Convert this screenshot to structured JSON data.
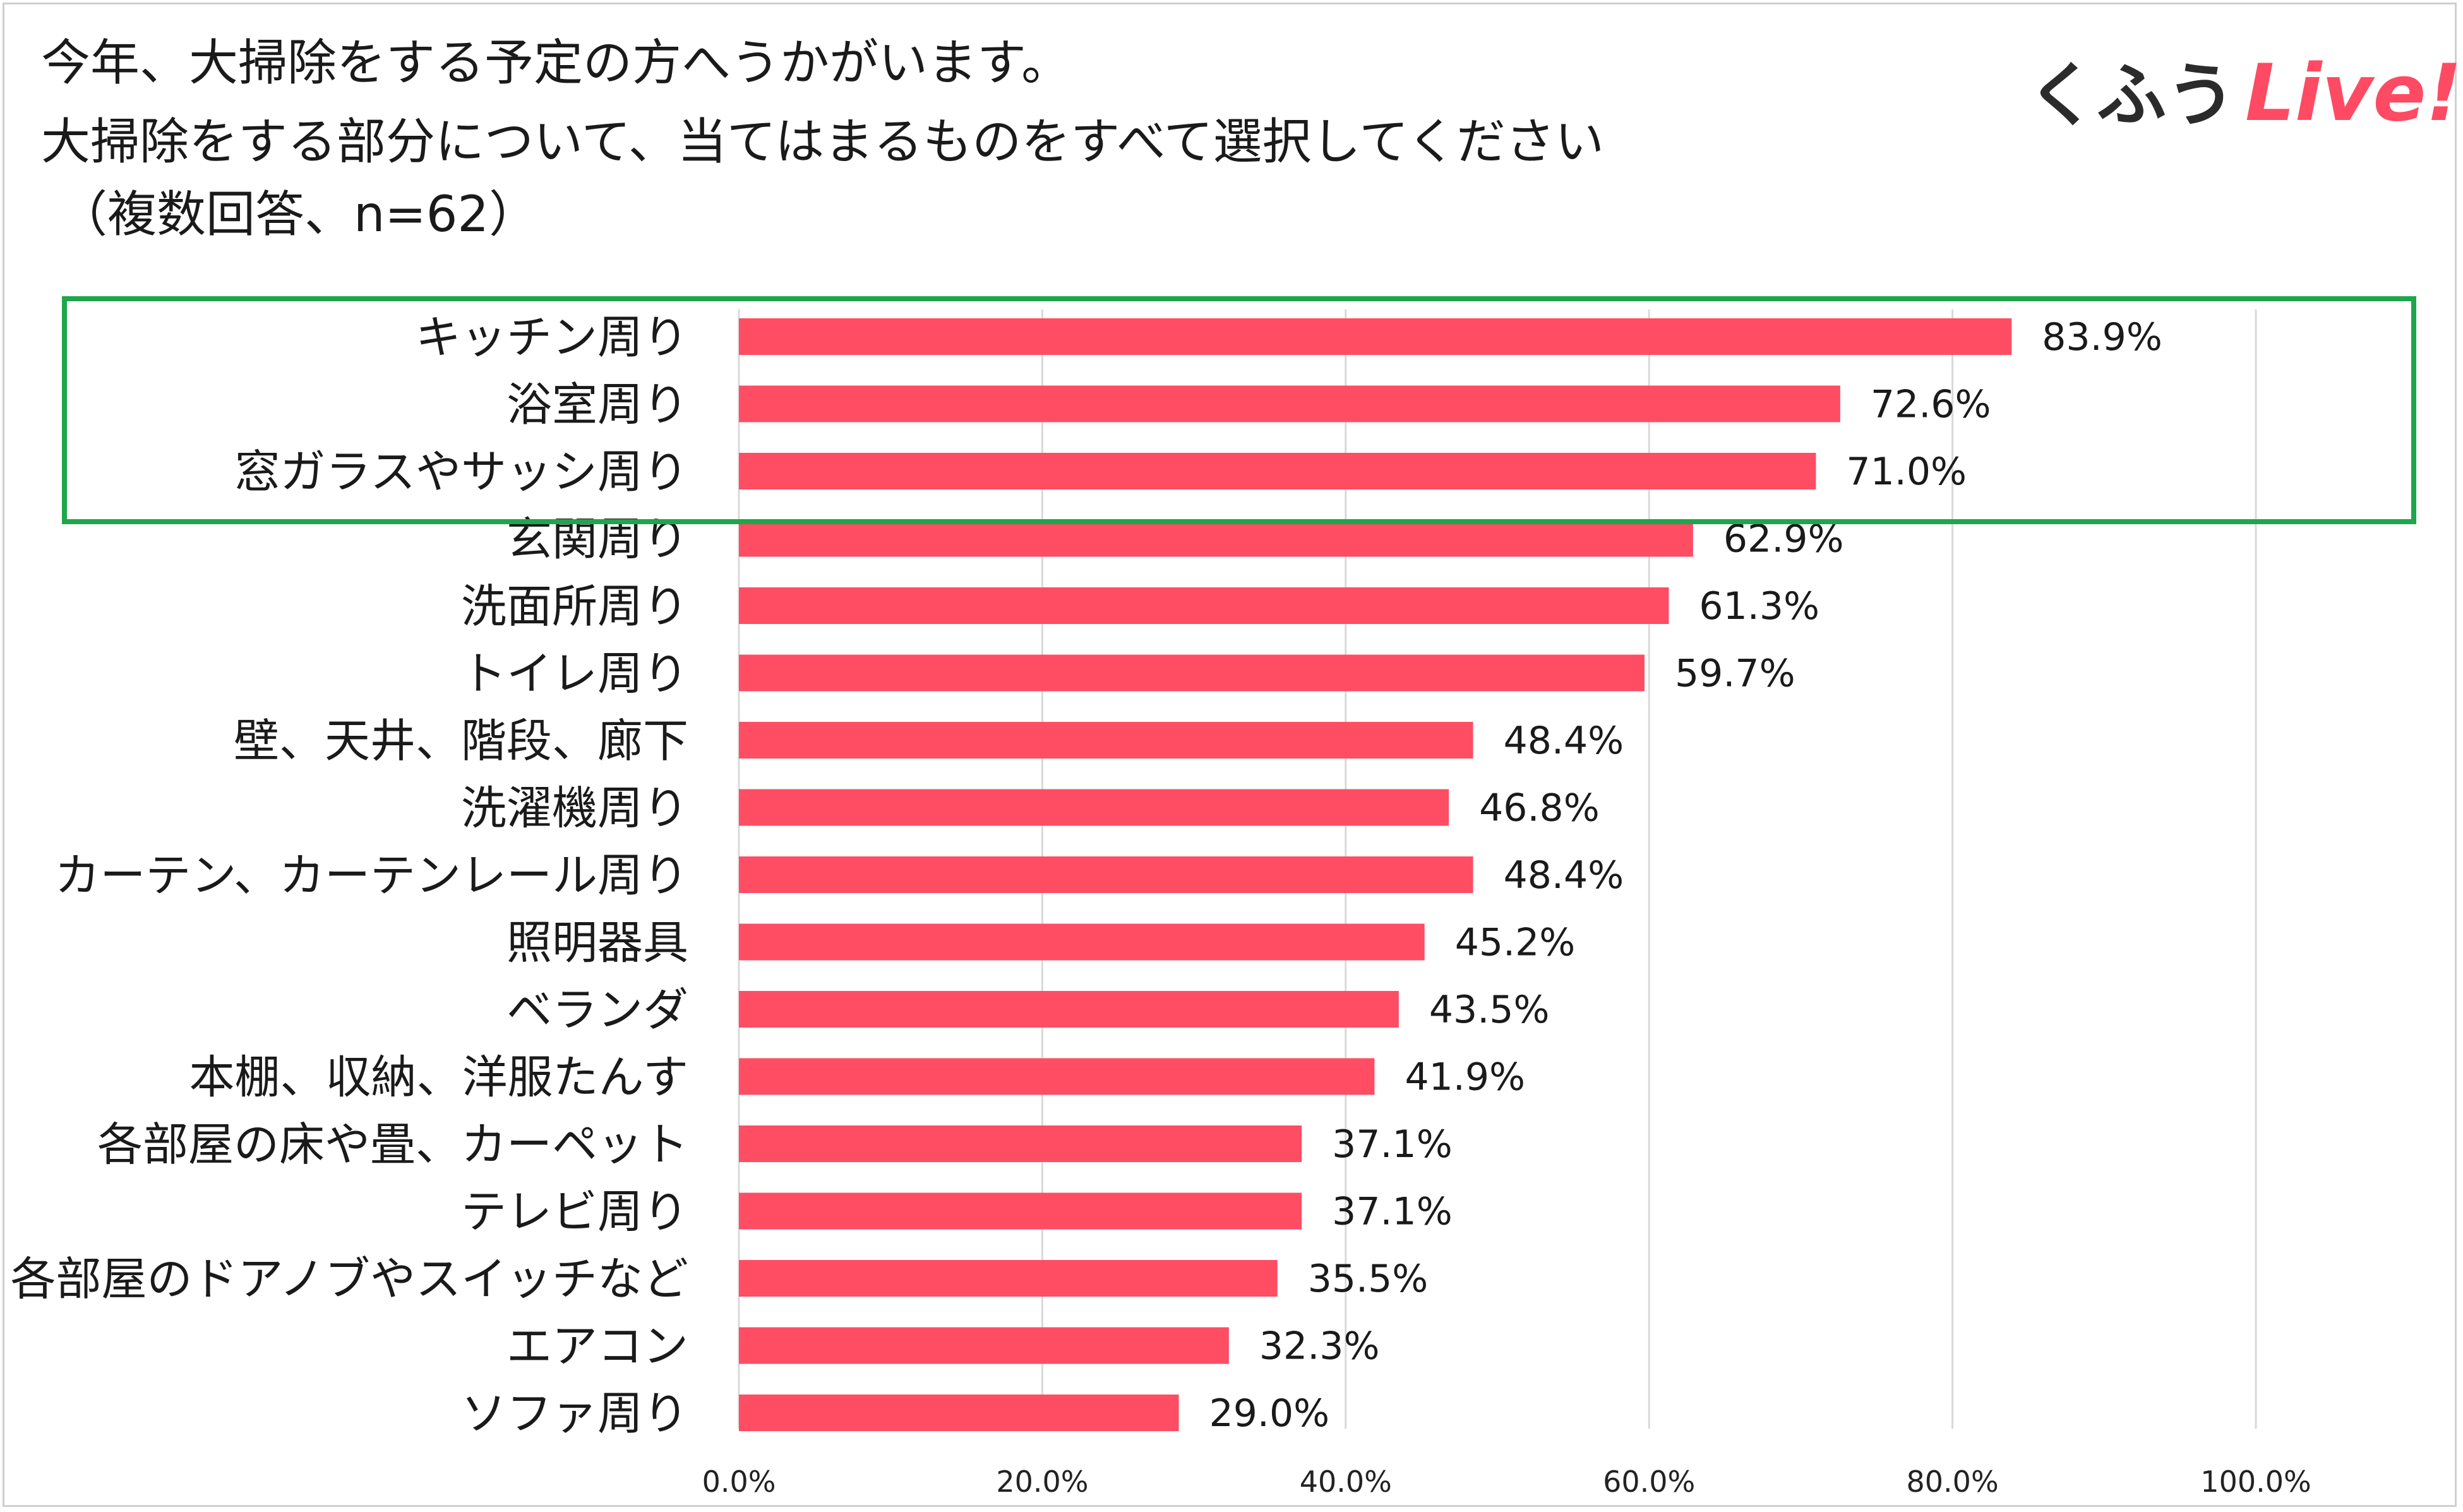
{
  "title": {
    "line1": "今年、大掃除をする予定の方へうかがいます。",
    "line2": "大掃除をする部分について、当てはまるものをすべて選択してください",
    "line3": "（複数回答、n=62）"
  },
  "logo": {
    "kana": "くふう",
    "latin": "Live!"
  },
  "colors": {
    "bar": "#ff4d64",
    "highlight_box": "#1fa64a",
    "grid": "#d9d9d9"
  },
  "highlight": {
    "from_index": 0,
    "to_index": 2
  },
  "chart_data": {
    "type": "bar",
    "orientation": "horizontal",
    "categories": [
      "キッチン周り",
      "浴室周り",
      "窓ガラスやサッシ周り",
      "玄関周り",
      "洗面所周り",
      "トイレ周り",
      "壁、天井、階段、廊下",
      "洗濯機周り",
      "カーテン、カーテンレール周り",
      "照明器具",
      "ベランダ",
      "本棚、収納、洋服たんす",
      "各部屋の床や畳、カーペット",
      "テレビ周り",
      "各部屋のドアノブやスイッチなど",
      "エアコン",
      "ソファ周り"
    ],
    "values": [
      83.9,
      72.6,
      71.0,
      62.9,
      61.3,
      59.7,
      48.4,
      46.8,
      48.4,
      45.2,
      43.5,
      41.9,
      37.1,
      37.1,
      35.5,
      32.3,
      29.0
    ],
    "value_labels": [
      "83.9%",
      "72.6%",
      "71.0%",
      "62.9%",
      "61.3%",
      "59.7%",
      "48.4%",
      "46.8%",
      "48.4%",
      "45.2%",
      "43.5%",
      "41.9%",
      "37.1%",
      "37.1%",
      "35.5%",
      "32.3%",
      "29.0%"
    ],
    "x_ticks": [
      0,
      20,
      40,
      60,
      80,
      100
    ],
    "x_tick_labels": [
      "0.0%",
      "20.0%",
      "40.0%",
      "60.0%",
      "80.0%",
      "100.0%"
    ],
    "xlim": [
      0,
      100
    ],
    "title": "今年、大掃除をする予定の方へうかがいます。大掃除をする部分について、当てはまるものをすべて選択してください（複数回答、n=62）",
    "xlabel": "",
    "ylabel": "",
    "grid": true
  }
}
